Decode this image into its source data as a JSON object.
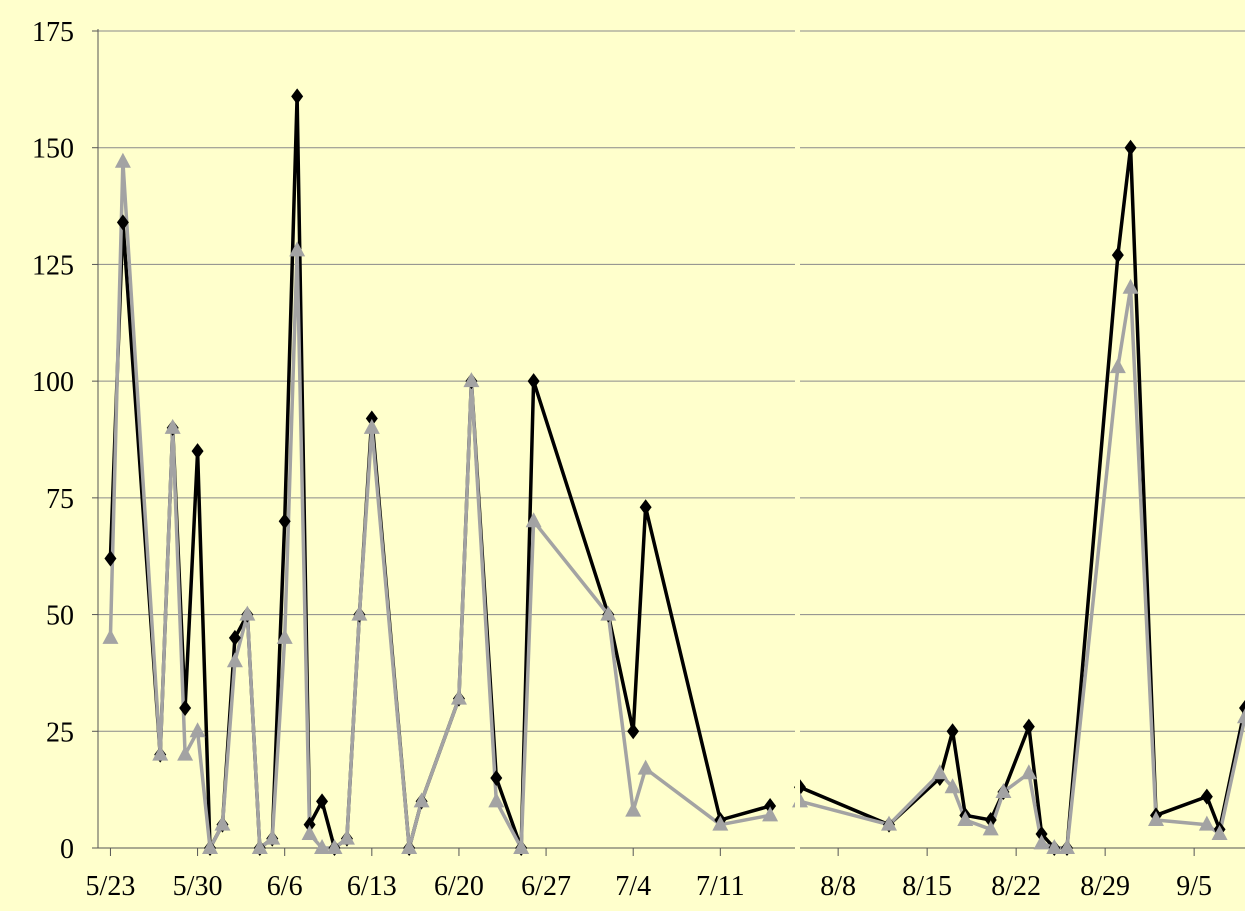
{
  "chart_data": {
    "type": "line",
    "y_axis": {
      "min": 0,
      "max": 175,
      "ticks": [
        0,
        25,
        50,
        75,
        100,
        125,
        150,
        175
      ],
      "tick_labels": [
        "0",
        "25",
        "50",
        "75",
        "100",
        "125",
        "150",
        "175"
      ]
    },
    "grid": true,
    "panels": [
      {
        "id": "left",
        "x_range": [
          "5/22",
          "7/17"
        ],
        "x_tick_labels": [
          "5/23",
          "5/30",
          "6/6",
          "6/13",
          "6/20",
          "6/27",
          "7/4",
          "7/11"
        ],
        "series": [
          {
            "style": "black-diamond",
            "points": [
              [
                "5/23",
                62
              ],
              [
                "5/24",
                134
              ],
              [
                "5/27",
                20
              ],
              [
                "5/28",
                90
              ],
              [
                "5/29",
                30
              ],
              [
                "5/30",
                85
              ],
              [
                "5/31",
                0
              ],
              [
                "6/1",
                5
              ],
              [
                "6/2",
                45
              ],
              [
                "6/3",
                50
              ],
              [
                "6/4",
                0
              ],
              [
                "6/5",
                2
              ],
              [
                "6/6",
                70
              ],
              [
                "6/7",
                161
              ],
              [
                "6/8",
                5
              ],
              [
                "6/9",
                10
              ],
              [
                "6/10",
                0
              ],
              [
                "6/11",
                2
              ],
              [
                "6/12",
                50
              ],
              [
                "6/13",
                92
              ],
              [
                "6/16",
                0
              ],
              [
                "6/17",
                10
              ],
              [
                "6/20",
                32
              ],
              [
                "6/21",
                100
              ],
              [
                "6/23",
                15
              ],
              [
                "6/25",
                0
              ],
              [
                "6/26",
                100
              ],
              [
                "7/2",
                50
              ],
              [
                "7/4",
                25
              ],
              [
                "7/5",
                73
              ],
              [
                "7/11",
                6
              ],
              [
                "7/15",
                9
              ]
            ]
          },
          {
            "style": "gray-triangle",
            "points": [
              [
                "5/23",
                45
              ],
              [
                "5/24",
                147
              ],
              [
                "5/27",
                20
              ],
              [
                "5/28",
                90
              ],
              [
                "5/29",
                20
              ],
              [
                "5/30",
                25
              ],
              [
                "5/31",
                0
              ],
              [
                "6/1",
                5
              ],
              [
                "6/2",
                40
              ],
              [
                "6/3",
                50
              ],
              [
                "6/4",
                0
              ],
              [
                "6/5",
                2
              ],
              [
                "6/6",
                45
              ],
              [
                "6/7",
                128
              ],
              [
                "6/8",
                3
              ],
              [
                "6/9",
                0
              ],
              [
                "6/10",
                0
              ],
              [
                "6/11",
                2
              ],
              [
                "6/12",
                50
              ],
              [
                "6/13",
                90
              ],
              [
                "6/16",
                0
              ],
              [
                "6/17",
                10
              ],
              [
                "6/20",
                32
              ],
              [
                "6/21",
                100
              ],
              [
                "6/23",
                10
              ],
              [
                "6/25",
                0
              ],
              [
                "6/26",
                70
              ],
              [
                "7/2",
                50
              ],
              [
                "7/4",
                8
              ],
              [
                "7/5",
                17
              ],
              [
                "7/11",
                5
              ],
              [
                "7/15",
                7
              ]
            ]
          }
        ]
      },
      {
        "id": "right",
        "x_range": [
          "8/5",
          "9/9"
        ],
        "x_tick_labels": [
          "8/8",
          "8/15",
          "8/22",
          "8/29",
          "9/5"
        ],
        "series": [
          {
            "style": "black-diamond",
            "points": [
              [
                "8/5",
                13
              ],
              [
                "8/12",
                5
              ],
              [
                "8/16",
                15
              ],
              [
                "8/17",
                25
              ],
              [
                "8/18",
                7
              ],
              [
                "8/20",
                6
              ],
              [
                "8/21",
                12
              ],
              [
                "8/23",
                26
              ],
              [
                "8/24",
                3
              ],
              [
                "8/25",
                0
              ],
              [
                "8/26",
                0
              ],
              [
                "8/30",
                127
              ],
              [
                "8/31",
                150
              ],
              [
                "9/2",
                7
              ],
              [
                "9/6",
                11
              ],
              [
                "9/7",
                4
              ],
              [
                "9/9",
                30
              ]
            ]
          },
          {
            "style": "gray-triangle",
            "points": [
              [
                "8/5",
                10
              ],
              [
                "8/12",
                5
              ],
              [
                "8/16",
                16
              ],
              [
                "8/17",
                13
              ],
              [
                "8/18",
                6
              ],
              [
                "8/20",
                4
              ],
              [
                "8/21",
                12
              ],
              [
                "8/23",
                16
              ],
              [
                "8/24",
                1
              ],
              [
                "8/25",
                0
              ],
              [
                "8/26",
                0
              ],
              [
                "8/30",
                103
              ],
              [
                "8/31",
                120
              ],
              [
                "9/2",
                6
              ],
              [
                "9/6",
                5
              ],
              [
                "9/7",
                3
              ],
              [
                "9/9",
                28
              ]
            ]
          }
        ]
      }
    ]
  }
}
